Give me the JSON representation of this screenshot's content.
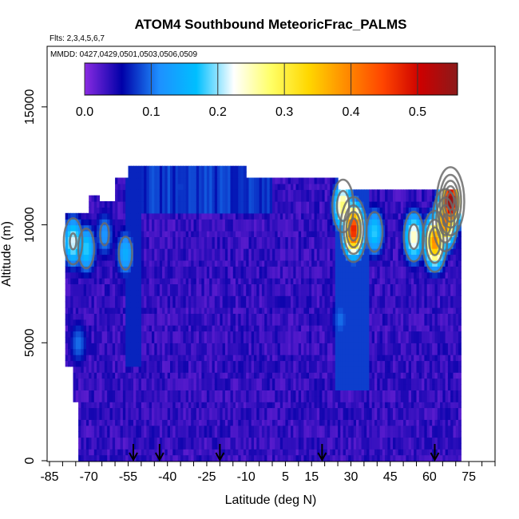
{
  "chart_data": {
    "type": "heatmap",
    "title": "ATOM4 Southbound MeteoricFrac_PALMS",
    "flights_label": "Flts: 2,3,4,5,6,7",
    "dates_label": "MMDD: 0427,0429,0501,0503,0506,0509",
    "xlabel": "Latitude (deg N)",
    "ylabel": "Altitude (m)",
    "xlim": [
      -85,
      85
    ],
    "ylim": [
      0,
      17500
    ],
    "x_tick_labels": [
      "-85",
      "-70",
      "-55",
      "-40",
      "-25",
      "-10",
      "5",
      "15",
      "30",
      "45",
      "60",
      "75"
    ],
    "x_tick_values": [
      -85,
      -70,
      -55,
      -40,
      -25,
      -10,
      5,
      15,
      30,
      45,
      60,
      75
    ],
    "y_tick_labels": [
      "0",
      "5000",
      "10000",
      "15000"
    ],
    "y_tick_values": [
      0,
      5000,
      10000,
      15000
    ],
    "colorbar": {
      "min": 0.0,
      "max": 0.56,
      "tick_labels": [
        "0.0",
        "0.1",
        "0.2",
        "0.3",
        "0.4",
        "0.5"
      ],
      "tick_values": [
        0.0,
        0.1,
        0.2,
        0.3,
        0.4,
        0.5
      ],
      "colors": [
        "#8a2be2",
        "#0000a8",
        "#1e90ff",
        "#00bfff",
        "#ffffff",
        "#ffff66",
        "#ffd700",
        "#ff8c00",
        "#ff4500",
        "#cc0000",
        "#8b1a1a"
      ]
    },
    "profile_arrows_latitude": [
      -53,
      -43,
      -20,
      19,
      62
    ],
    "background_value": 0.0,
    "field_region": {
      "lat_range": [
        -79,
        72
      ],
      "alt_range": [
        0,
        12500
      ]
    },
    "features": [
      {
        "lat": -76,
        "alt": 9300,
        "value": 0.22
      },
      {
        "lat": -71,
        "alt": 9000,
        "value": 0.18
      },
      {
        "lat": -64,
        "alt": 9600,
        "value": 0.12
      },
      {
        "lat": -56,
        "alt": 8800,
        "value": 0.15
      },
      {
        "lat": -74,
        "alt": 5000,
        "value": 0.1
      },
      {
        "lat": -35,
        "alt": 11600,
        "value": 0.08
      },
      {
        "lat": -20,
        "alt": 11800,
        "value": 0.06
      },
      {
        "lat": 27,
        "alt": 10800,
        "value": 0.28
      },
      {
        "lat": 31,
        "alt": 9800,
        "value": 0.48
      },
      {
        "lat": 39,
        "alt": 9700,
        "value": 0.18
      },
      {
        "lat": 54,
        "alt": 9500,
        "value": 0.25
      },
      {
        "lat": 62,
        "alt": 9300,
        "value": 0.4
      },
      {
        "lat": 66,
        "alt": 10200,
        "value": 0.42
      },
      {
        "lat": 68,
        "alt": 11000,
        "value": 0.56
      },
      {
        "lat": 26,
        "alt": 6000,
        "value": 0.1
      },
      {
        "lat": 33,
        "alt": 5500,
        "value": 0.08
      }
    ],
    "grid": false,
    "legend": "colorbar-top"
  }
}
